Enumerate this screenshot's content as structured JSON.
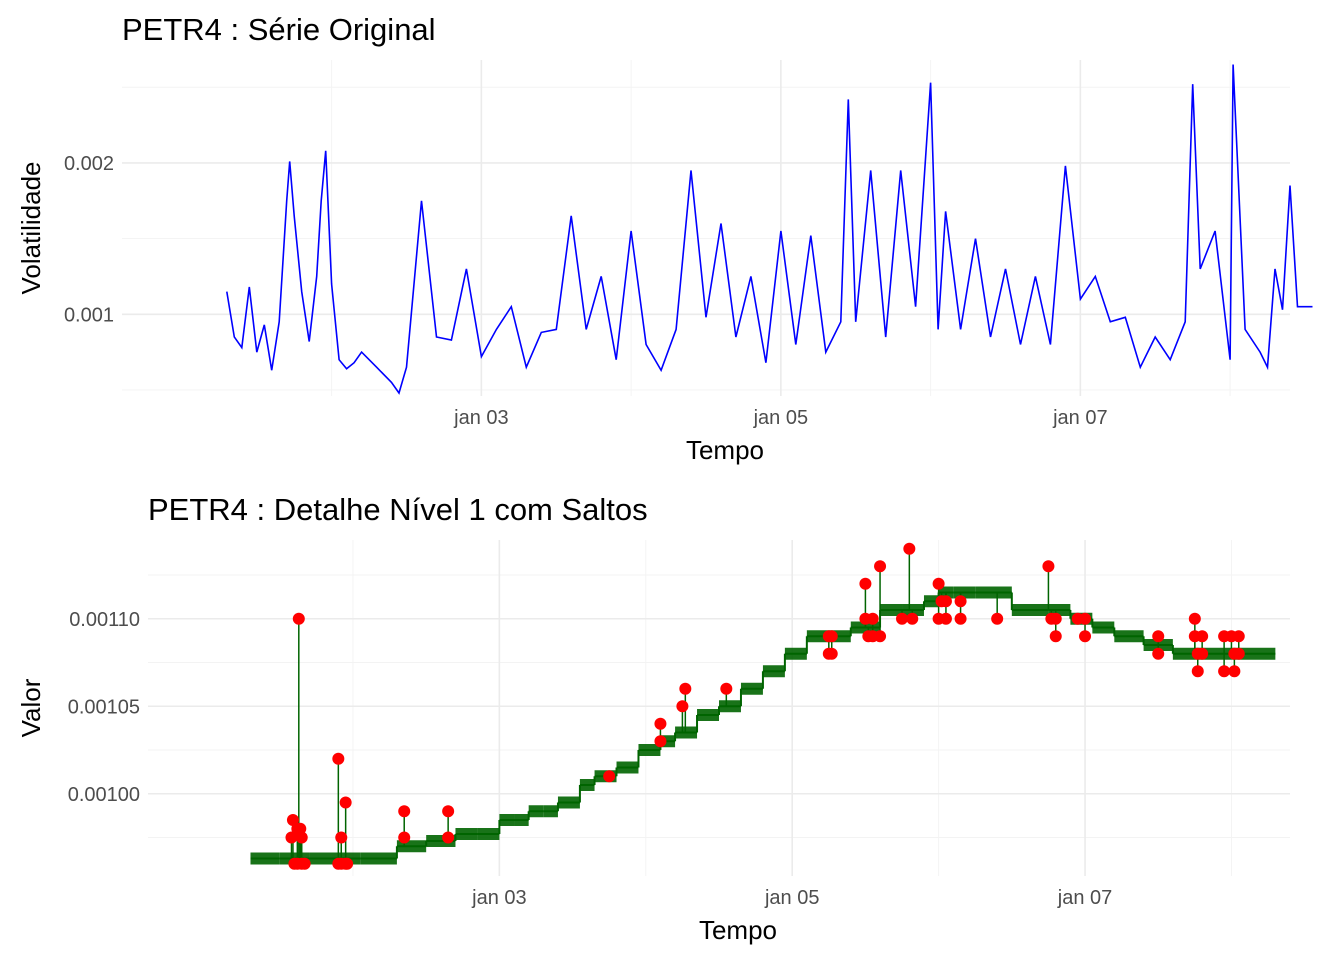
{
  "chart_data": [
    {
      "type": "line",
      "title": "PETR4 : Série Original",
      "xlabel": "Tempo",
      "ylabel": "Volatilidade",
      "x_ticks": [
        "jan 03",
        "jan 05",
        "jan 07"
      ],
      "x_tick_values": [
        3,
        5,
        7
      ],
      "xlim": [
        0.6,
        8.4
      ],
      "y_ticks": [
        "0.001",
        "0.002"
      ],
      "y_tick_values": [
        0.001,
        0.002
      ],
      "ylim": [
        0.00046,
        0.00268
      ],
      "grid": true,
      "series": [
        {
          "color": "#0000ff",
          "x": [
            1.3,
            1.35,
            1.4,
            1.45,
            1.5,
            1.55,
            1.6,
            1.65,
            1.7,
            1.72,
            1.75,
            1.8,
            1.85,
            1.9,
            1.93,
            1.96,
            2.0,
            2.05,
            2.1,
            2.15,
            2.2,
            2.3,
            2.4,
            2.45,
            2.5,
            2.6,
            2.7,
            2.8,
            2.9,
            3.0,
            3.1,
            3.2,
            3.3,
            3.4,
            3.5,
            3.6,
            3.7,
            3.8,
            3.9,
            4.0,
            4.1,
            4.2,
            4.3,
            4.4,
            4.5,
            4.6,
            4.7,
            4.8,
            4.9,
            5.0,
            5.1,
            5.2,
            5.3,
            5.4,
            5.45,
            5.5,
            5.6,
            5.7,
            5.8,
            5.9,
            6.0,
            6.05,
            6.1,
            6.2,
            6.3,
            6.4,
            6.5,
            6.6,
            6.7,
            6.8,
            6.9,
            7.0,
            7.1,
            7.2,
            7.3,
            7.4,
            7.5,
            7.6,
            7.7,
            7.75,
            7.8,
            7.9,
            8.0,
            8.02,
            8.1,
            8.2,
            8.25,
            8.3,
            8.35,
            8.4,
            8.45,
            8.5,
            8.55
          ],
          "y": [
            0.00115,
            0.00085,
            0.00078,
            0.00118,
            0.00075,
            0.00093,
            0.00063,
            0.00095,
            0.00175,
            0.00201,
            0.00165,
            0.00115,
            0.00082,
            0.00125,
            0.00175,
            0.00208,
            0.0012,
            0.0007,
            0.00064,
            0.00068,
            0.00075,
            0.00065,
            0.00055,
            0.00048,
            0.00065,
            0.00175,
            0.00085,
            0.00083,
            0.0013,
            0.00072,
            0.0009,
            0.00105,
            0.00065,
            0.00088,
            0.0009,
            0.00165,
            0.0009,
            0.00125,
            0.0007,
            0.00155,
            0.0008,
            0.00063,
            0.0009,
            0.00195,
            0.00098,
            0.0016,
            0.00085,
            0.00125,
            0.00068,
            0.00155,
            0.0008,
            0.00152,
            0.00075,
            0.00095,
            0.00242,
            0.00095,
            0.00195,
            0.00085,
            0.00195,
            0.00105,
            0.00253,
            0.0009,
            0.00168,
            0.0009,
            0.0015,
            0.00085,
            0.0013,
            0.0008,
            0.00125,
            0.0008,
            0.00198,
            0.0011,
            0.00125,
            0.00095,
            0.00098,
            0.00065,
            0.00085,
            0.0007,
            0.00095,
            0.00252,
            0.0013,
            0.00155,
            0.0007,
            0.00265,
            0.0009,
            0.00075,
            0.00065,
            0.0013,
            0.00103,
            0.00185,
            0.00105,
            0.00105,
            0.00105
          ]
        }
      ]
    },
    {
      "type": "line",
      "title": "PETR4 : Detalhe Nível 1 com Saltos",
      "xlabel": "Tempo",
      "ylabel": "Valor",
      "x_ticks": [
        "jan 03",
        "jan 05",
        "jan 07"
      ],
      "x_tick_values": [
        3,
        5,
        7
      ],
      "xlim": [
        0.6,
        8.4
      ],
      "y_ticks": [
        "0.00100",
        "0.00105",
        "0.00110"
      ],
      "y_tick_values": [
        0.001,
        0.00105,
        0.0011
      ],
      "ylim": [
        0.000953,
        0.001145
      ],
      "grid": true,
      "series": [
        {
          "name": "",
          "color": "#006400",
          "x": [
            1.3,
            1.5,
            1.7,
            1.9,
            2.05,
            2.3,
            2.5,
            2.7,
            2.85,
            3.0,
            3.1,
            3.2,
            3.3,
            3.4,
            3.55,
            3.65,
            3.8,
            3.95,
            4.1,
            4.2,
            4.35,
            4.5,
            4.65,
            4.8,
            4.95,
            5.1,
            5.25,
            5.4,
            5.6,
            5.75,
            5.9,
            6.0,
            6.1,
            6.25,
            6.5,
            6.75,
            6.9,
            7.05,
            7.2,
            7.4,
            7.6,
            7.8,
            8.0,
            8.3
          ],
          "y": [
            0.000963,
            0.000963,
            0.000963,
            0.000963,
            0.000963,
            0.00097,
            0.000973,
            0.000977,
            0.000977,
            0.000985,
            0.000985,
            0.00099,
            0.00099,
            0.000995,
            0.001005,
            0.00101,
            0.001015,
            0.001025,
            0.00103,
            0.001035,
            0.001045,
            0.00105,
            0.00106,
            0.00107,
            0.00108,
            0.00109,
            0.00109,
            0.001095,
            0.001105,
            0.001105,
            0.00111,
            0.001115,
            0.001115,
            0.001115,
            0.001105,
            0.001105,
            0.0011,
            0.001095,
            0.00109,
            0.001085,
            0.00108,
            0.00108,
            0.00108,
            0.00108
          ]
        },
        {
          "name": "",
          "color": "#ff0000",
          "type": "scatter",
          "x": [
            1.58,
            1.59,
            1.6,
            1.62,
            1.62,
            1.63,
            1.64,
            1.65,
            1.65,
            1.67,
            1.9,
            1.9,
            1.92,
            1.92,
            1.95,
            1.95,
            1.96,
            2.35,
            2.35,
            2.65,
            2.65,
            3.75,
            4.1,
            4.1,
            4.25,
            4.27,
            4.55,
            5.25,
            5.25,
            5.27,
            5.27,
            5.5,
            5.5,
            5.52,
            5.55,
            5.55,
            5.6,
            5.6,
            5.75,
            5.8,
            5.82,
            6.0,
            6.0,
            6.02,
            6.05,
            6.05,
            6.15,
            6.15,
            6.4,
            6.75,
            6.77,
            6.8,
            6.8,
            6.95,
            7.0,
            7.0,
            7.5,
            7.5,
            7.75,
            7.75,
            7.77,
            7.77,
            7.8,
            7.8,
            7.95,
            7.95,
            8.0,
            8.02,
            8.02,
            8.05,
            8.05
          ],
          "y": [
            0.000975,
            0.000985,
            0.00096,
            0.00098,
            0.00096,
            0.0011,
            0.00098,
            0.000975,
            0.00096,
            0.00096,
            0.00102,
            0.00096,
            0.000975,
            0.00096,
            0.000995,
            0.00096,
            0.00096,
            0.00099,
            0.000975,
            0.00099,
            0.000975,
            0.00101,
            0.00104,
            0.00103,
            0.00105,
            0.00106,
            0.00106,
            0.00109,
            0.00108,
            0.00109,
            0.00108,
            0.00112,
            0.0011,
            0.00109,
            0.0011,
            0.00109,
            0.00113,
            0.00109,
            0.0011,
            0.00114,
            0.0011,
            0.00112,
            0.0011,
            0.00111,
            0.00111,
            0.0011,
            0.00111,
            0.0011,
            0.0011,
            0.00113,
            0.0011,
            0.00109,
            0.0011,
            0.0011,
            0.0011,
            0.00109,
            0.00109,
            0.00108,
            0.0011,
            0.00109,
            0.00108,
            0.00107,
            0.00109,
            0.00108,
            0.00109,
            0.00107,
            0.00109,
            0.00108,
            0.00107,
            0.00109,
            0.00108
          ]
        }
      ]
    }
  ]
}
